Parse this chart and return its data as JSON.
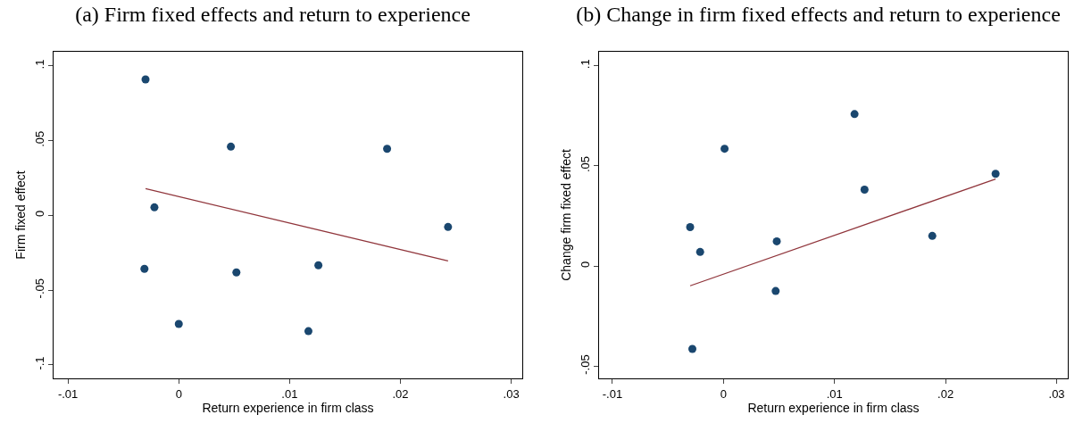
{
  "chart_data": [
    {
      "type": "scatter",
      "title": "(a) Firm fixed effects and return to experience",
      "xlabel": "Return experience in firm class",
      "ylabel": "Firm fixed effect",
      "marker": "circle",
      "grid": false,
      "xlim": [
        -0.0113,
        0.031
      ],
      "ylim": [
        -0.109,
        0.1095
      ],
      "xticks": [
        {
          "value": -0.01,
          "label": "-.01"
        },
        {
          "value": 0,
          "label": "0"
        },
        {
          "value": 0.01,
          "label": ".01"
        },
        {
          "value": 0.02,
          "label": ".02"
        },
        {
          "value": 0.03,
          "label": ".03"
        }
      ],
      "yticks": [
        {
          "value": -0.1,
          "label": "-.1"
        },
        {
          "value": -0.05,
          "label": "-.05"
        },
        {
          "value": 0,
          "label": "0"
        },
        {
          "value": 0.05,
          "label": ".05"
        },
        {
          "value": 0.1,
          "label": ".1"
        }
      ],
      "series": [
        {
          "color": "#1a476f",
          "x": [
            -0.003,
            0.0047,
            -0.0022,
            0.0188,
            0.0243,
            -0.0031,
            0.0052,
            0.0126,
            0,
            0.0117
          ],
          "values": [
            0.091,
            0.046,
            0.0054,
            0.0446,
            -0.0077,
            -0.0357,
            -0.0381,
            -0.0333,
            -0.0726,
            -0.0774
          ]
        },
        {
          "type": "line",
          "marker": "none",
          "color": "#90353b",
          "x": [
            -0.003,
            0.0243
          ],
          "values": [
            0.0179,
            -0.0304
          ]
        }
      ]
    },
    {
      "type": "scatter",
      "title": "(b) Change in firm fixed effects and return to experience",
      "xlabel": "Return experience in firm class",
      "ylabel": "Change firm fixed effect",
      "marker": "circle",
      "grid": false,
      "xlim": [
        -0.0112,
        0.031
      ],
      "ylim": [
        -0.056,
        0.107
      ],
      "xticks": [
        {
          "value": -0.01,
          "label": "-.01"
        },
        {
          "value": 0,
          "label": "0"
        },
        {
          "value": 0.01,
          "label": ".01"
        },
        {
          "value": 0.02,
          "label": ".02"
        },
        {
          "value": 0.03,
          "label": ".03"
        }
      ],
      "yticks": [
        {
          "value": -0.05,
          "label": "-.05"
        },
        {
          "value": 0,
          "label": "0"
        },
        {
          "value": 0.05,
          "label": ".05"
        },
        {
          "value": 0.1,
          "label": ".1"
        }
      ],
      "series": [
        {
          "color": "#1a476f",
          "x": [
            -0.003,
            -0.0021,
            0.0001,
            0.0048,
            0.0047,
            0.0118,
            0.0127,
            0.0188,
            0.0245,
            -0.0028
          ],
          "values": [
            0.0195,
            0.0071,
            0.0586,
            0.0124,
            -0.0124,
            0.0759,
            0.0382,
            0.0151,
            0.0461,
            -0.0413
          ]
        },
        {
          "type": "line",
          "marker": "none",
          "color": "#90353b",
          "x": [
            -0.003,
            0.0245
          ],
          "values": [
            -0.0098,
            0.0435
          ]
        }
      ]
    }
  ]
}
